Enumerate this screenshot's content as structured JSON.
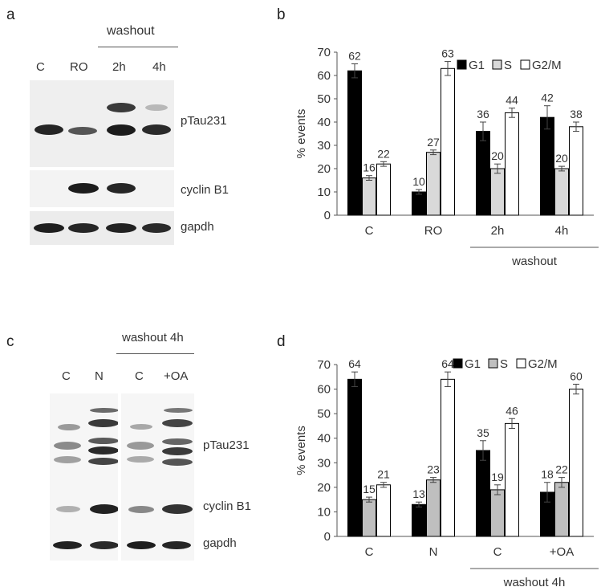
{
  "panels": {
    "a": {
      "letter": "a",
      "header": "washout",
      "lanes": [
        "C",
        "RO",
        "2h",
        "4h"
      ],
      "bands": [
        "pTau231",
        "cyclin B1",
        "gapdh"
      ]
    },
    "b": {
      "letter": "b",
      "chart_data": {
        "type": "bar",
        "categories": [
          "C",
          "RO",
          "2h",
          "4h"
        ],
        "group_label": "washout",
        "series": [
          {
            "name": "G1",
            "values": [
              62,
              10,
              36,
              42
            ],
            "errors": [
              3,
              1,
              4,
              5
            ],
            "color": "#000000"
          },
          {
            "name": "S",
            "values": [
              16,
              27,
              20,
              20
            ],
            "errors": [
              1,
              1,
              2,
              1
            ],
            "color": "#d9d9d9"
          },
          {
            "name": "G2/M",
            "values": [
              22,
              63,
              44,
              38
            ],
            "errors": [
              1,
              3,
              2,
              2
            ],
            "color": "#ffffff"
          }
        ],
        "data_labels": [
          [
            "62",
            "10",
            "36",
            "42"
          ],
          [
            "16",
            "27",
            "20",
            "20"
          ],
          [
            "22",
            "63",
            "44",
            "38"
          ]
        ],
        "ylabel": "% events",
        "ylim": [
          0,
          70
        ],
        "yticks": [
          0,
          10,
          20,
          30,
          40,
          50,
          60,
          70
        ],
        "legend_position": "top-right"
      }
    },
    "c": {
      "letter": "c",
      "header": "washout 4h",
      "lanes": [
        "C",
        "N",
        "C",
        "+OA"
      ],
      "bands": [
        "pTau231",
        "cyclin B1",
        "gapdh"
      ]
    },
    "d": {
      "letter": "d",
      "chart_data": {
        "type": "bar",
        "categories": [
          "C",
          "N",
          "C",
          "+OA"
        ],
        "group_label": "washout 4h",
        "series": [
          {
            "name": "G1",
            "values": [
              64,
              13,
              35,
              18
            ],
            "errors": [
              3,
              1,
              4,
              4
            ],
            "color": "#000000"
          },
          {
            "name": "S",
            "values": [
              15,
              23,
              19,
              22
            ],
            "errors": [
              1,
              1,
              2,
              2
            ],
            "color": "#bfbfbf"
          },
          {
            "name": "G2/M",
            "values": [
              21,
              64,
              46,
              60
            ],
            "errors": [
              1,
              3,
              2,
              2
            ],
            "color": "#ffffff"
          }
        ],
        "data_labels": [
          [
            "64",
            "13",
            "35",
            "18"
          ],
          [
            "15",
            "23",
            "19",
            "22"
          ],
          [
            "21",
            "64",
            "46",
            "60"
          ]
        ],
        "ylabel": "% events",
        "ylim": [
          0,
          70
        ],
        "yticks": [
          0,
          10,
          20,
          30,
          40,
          50,
          60,
          70
        ],
        "legend_position": "top-right"
      }
    }
  }
}
